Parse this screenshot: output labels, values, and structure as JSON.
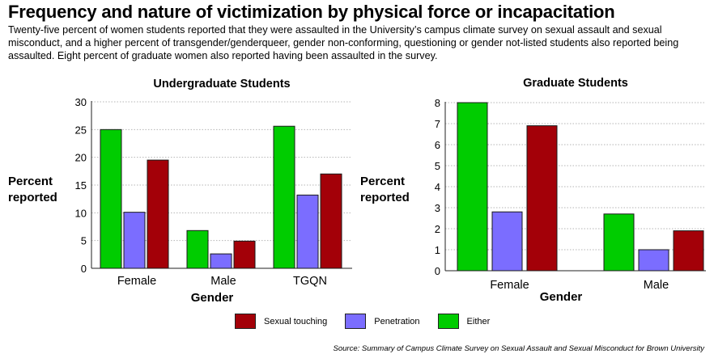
{
  "title": "Frequency and nature of victimization by physical force or incapacitation",
  "subtitle": "Twenty-five percent of women students reported that they were assaulted in the University’s campus climate survey on sexual assault and sexual misconduct, and a higher percent of transgender/genderqueer, gender non-conforming, questioning or gender not-listed students also reported being assaulted. Eight percent of graduate women also reported having been assaulted in the survey.",
  "colors": {
    "either": "#00cc00",
    "penetration": "#7b6dff",
    "touching": "#a30008"
  },
  "legend": [
    {
      "label": "Sexual touching",
      "color": "#a30008"
    },
    {
      "label": "Penetration",
      "color": "#7b6dff"
    },
    {
      "label": "Either",
      "color": "#00cc00"
    }
  ],
  "source": "Source:  Summary of Campus Climate Survey on Sexual Assault and Sexual Misconduct for Brown University",
  "chart_data": [
    {
      "type": "bar",
      "title": "Undergraduate Students",
      "xlabel": "Gender",
      "ylabel": "Percent reported",
      "categories": [
        "Female",
        "Male",
        "TGQN"
      ],
      "ylim": [
        0,
        30
      ],
      "yticks": [
        0,
        5,
        10,
        15,
        20,
        25,
        30
      ],
      "series": [
        {
          "name": "Either",
          "values": [
            25,
            6.8,
            25.6
          ]
        },
        {
          "name": "Penetration",
          "values": [
            10.1,
            2.6,
            13.2
          ]
        },
        {
          "name": "Sexual touching",
          "values": [
            19.5,
            4.9,
            17
          ]
        }
      ]
    },
    {
      "type": "bar",
      "title": "Graduate Students",
      "xlabel": "Gender",
      "ylabel": "Percent reported",
      "categories": [
        "Female",
        "Male"
      ],
      "ylim": [
        0,
        8
      ],
      "yticks": [
        0,
        1,
        2,
        3,
        4,
        5,
        6,
        7,
        8
      ],
      "series": [
        {
          "name": "Either",
          "values": [
            8,
            2.7
          ]
        },
        {
          "name": "Penetration",
          "values": [
            2.8,
            1
          ]
        },
        {
          "name": "Sexual touching",
          "values": [
            6.9,
            1.9
          ]
        }
      ]
    }
  ]
}
